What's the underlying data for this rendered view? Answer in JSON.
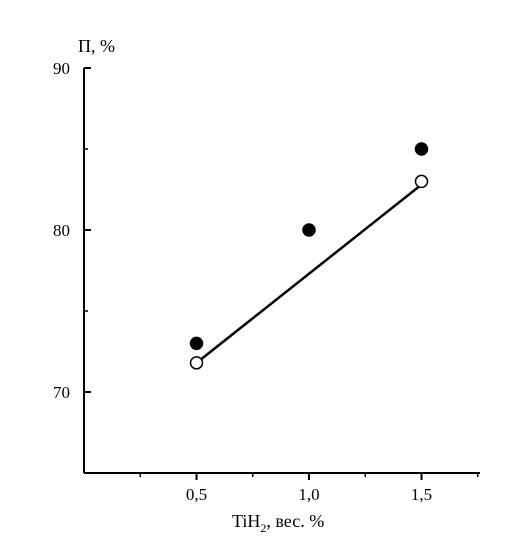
{
  "chart_data": {
    "type": "scatter",
    "title": "",
    "ylabel": "П, %",
    "xlabel": {
      "main": "TiH",
      "subscript": "2",
      "rest": ", вес. %"
    },
    "xlim": [
      0.0,
      1.76
    ],
    "ylim": [
      65,
      90
    ],
    "x_ticks": [
      0.5,
      1.0,
      1.5
    ],
    "x_tick_labels": [
      "0,5",
      "1,0",
      "1,5"
    ],
    "y_ticks": [
      70,
      80,
      90
    ],
    "y_tick_labels": [
      "70",
      "80",
      "90"
    ],
    "grid": false,
    "series": [
      {
        "marker": "filled-circle",
        "x": [
          0.5,
          1.0,
          1.5
        ],
        "y": [
          73,
          80,
          85
        ]
      },
      {
        "marker": "open-circle",
        "x": [
          0.5,
          1.5
        ],
        "y": [
          71.8,
          83
        ]
      }
    ],
    "fit_line": {
      "x": [
        0.5,
        1.5
      ],
      "y": [
        71.8,
        82.8
      ]
    },
    "colors": {
      "axis": "#000000",
      "marker": "#000000",
      "open_fill": "#ffffff"
    }
  }
}
